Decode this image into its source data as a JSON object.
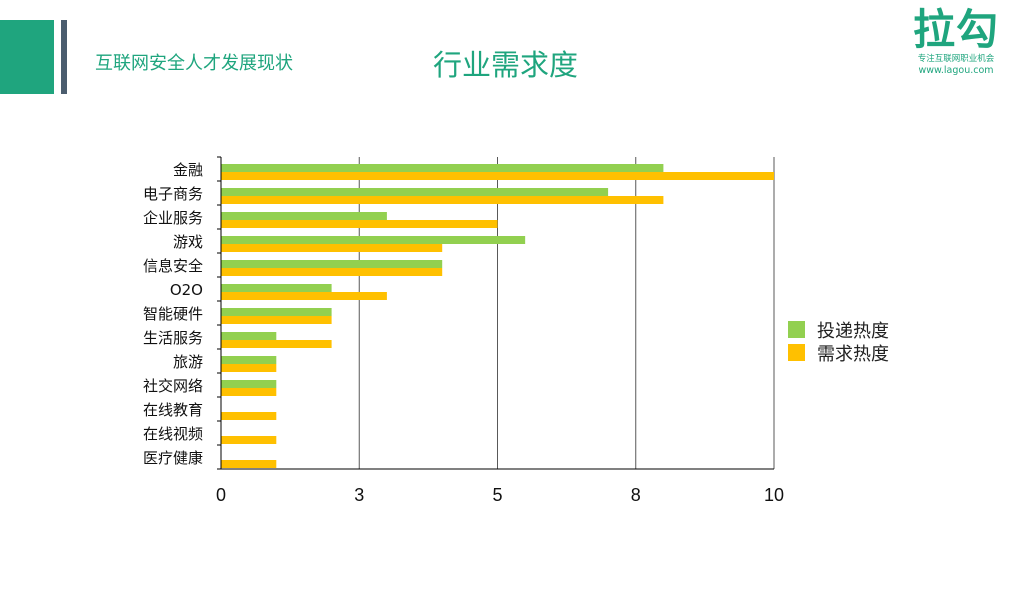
{
  "header": {
    "subtitle": "互联网安全人才发展现状",
    "title": "行业需求度"
  },
  "logo": {
    "mark": "拉勾",
    "tagline": "专注互联网职业机会",
    "url": "www.lagou.com"
  },
  "colors": {
    "brand": "#1fa57e",
    "side_bar": "#4b5d6e",
    "series_delivery": "#92d050",
    "series_demand": "#ffc000",
    "gridline": "#595959"
  },
  "chart_data": {
    "type": "bar",
    "orientation": "horizontal",
    "title": "行业需求度",
    "categories": [
      "金融",
      "电子商务",
      "企业服务",
      "游戏",
      "信息安全",
      "O2O",
      "智能硬件",
      "生活服务",
      "旅游",
      "社交网络",
      "在线教育",
      "在线视频",
      "医疗健康"
    ],
    "series": [
      {
        "name": "投递热度",
        "color": "#92d050",
        "values": [
          8.0,
          7.0,
          3.0,
          5.5,
          4.0,
          2.0,
          2.0,
          1.0,
          1.0,
          1.0,
          0,
          0,
          0
        ]
      },
      {
        "name": "需求热度",
        "color": "#ffc000",
        "values": [
          10.0,
          8.0,
          5.0,
          4.0,
          4.0,
          3.0,
          2.0,
          2.0,
          1.0,
          1.0,
          1.0,
          1.0,
          1.0
        ]
      }
    ],
    "xlim": [
      0,
      10
    ],
    "x_ticks": [
      0,
      2.5,
      5,
      7.5,
      10
    ],
    "x_tick_labels": [
      "0",
      "3",
      "5",
      "8",
      "10"
    ],
    "grid": "vertical",
    "legend_position": "right"
  }
}
